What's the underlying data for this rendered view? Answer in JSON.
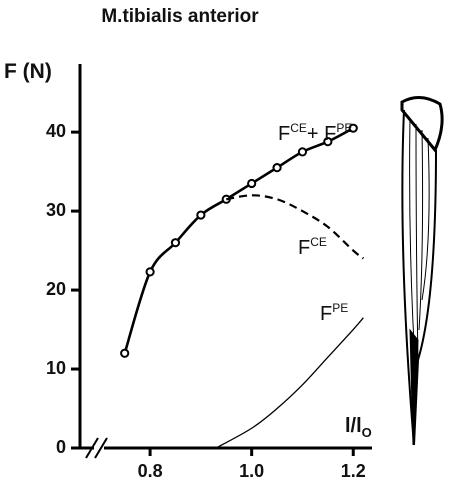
{
  "chart_data": {
    "type": "line",
    "title": "M.tibialis anterior",
    "y_label": "F (N)",
    "x_label": [
      "l/l",
      "O"
    ],
    "xlim": [
      0.662,
      1.233
    ],
    "ylim": [
      0,
      48.5
    ],
    "xticks": [
      0.8,
      {
        "value": 1,
        "label": "1.0"
      },
      1.2
    ],
    "yticks": [
      0,
      10,
      20,
      30,
      40
    ],
    "series": [
      {
        "label": [
          "F",
          "CE",
          "+ F",
          "PE"
        ],
        "color": "#000000",
        "style": "solid",
        "width": 2.6,
        "markers": true,
        "x": [
          0.75,
          0.8,
          0.85,
          0.9,
          0.95,
          1.0,
          1.05,
          1.1,
          1.15,
          1.2
        ],
        "values": [
          12,
          22.3,
          26,
          29.5,
          31.5,
          33.5,
          35.5,
          37.5,
          38.8,
          40.5
        ]
      },
      {
        "label": [
          "F",
          "CE"
        ],
        "color": "#000000",
        "style": "dashed",
        "width": 2.2,
        "markers": false,
        "x": [
          0.95,
          1.0,
          1.05,
          1.1,
          1.15,
          1.2,
          1.22
        ],
        "values": [
          31.5,
          32,
          31.5,
          30,
          28,
          25,
          24
        ]
      },
      {
        "label": [
          "F",
          "PE"
        ],
        "color": "#000000",
        "style": "solid",
        "width": 1.3,
        "markers": false,
        "x": [
          0.93,
          1.0,
          1.05,
          1.1,
          1.15,
          1.2,
          1.22
        ],
        "values": [
          0,
          2.5,
          5,
          8,
          11.5,
          15,
          16.5
        ]
      }
    ]
  }
}
